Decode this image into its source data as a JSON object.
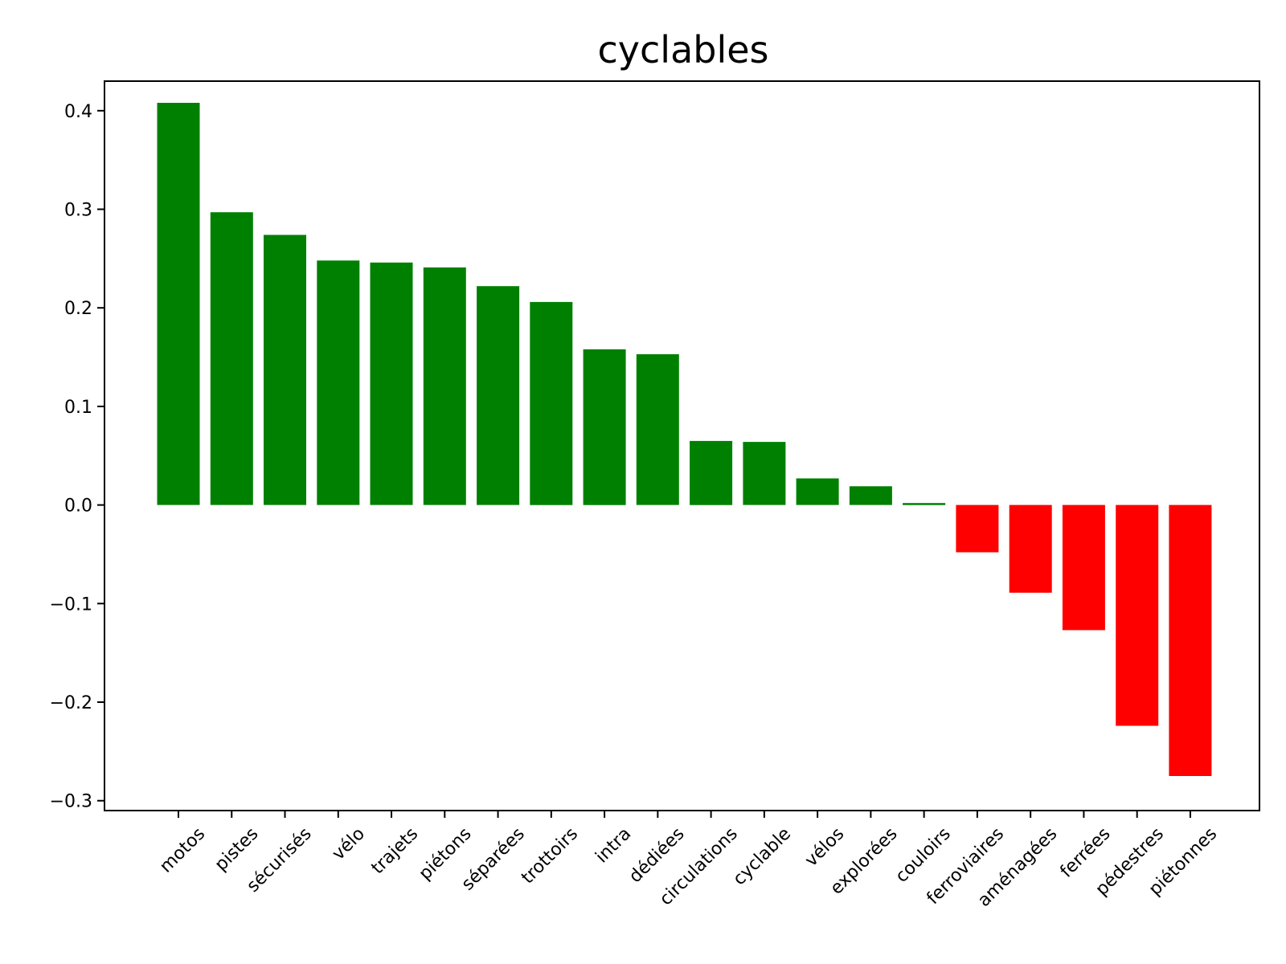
{
  "chart_data": {
    "type": "bar",
    "title": "cyclables",
    "xlabel": "",
    "ylabel": "",
    "categories": [
      "motos",
      "pistes",
      "sécurisés",
      "vélo",
      "trajets",
      "piétons",
      "séparées",
      "trottoirs",
      "intra",
      "dédiées",
      "circulations",
      "cyclable",
      "vélos",
      "explorées",
      "couloirs",
      "ferroviaires",
      "aménagées",
      "ferrées",
      "pédestres",
      "piétonnes"
    ],
    "values": [
      0.408,
      0.297,
      0.274,
      0.248,
      0.246,
      0.241,
      0.222,
      0.206,
      0.158,
      0.153,
      0.065,
      0.064,
      0.027,
      0.019,
      0.002,
      -0.048,
      -0.089,
      -0.127,
      -0.224,
      -0.275
    ],
    "ylim": [
      -0.31,
      0.43
    ],
    "yticks": [
      -0.3,
      -0.2,
      -0.1,
      0.0,
      0.1,
      0.2,
      0.3,
      0.4
    ],
    "ytick_labels": [
      "−0.3",
      "−0.2",
      "−0.1",
      "0.0",
      "0.1",
      "0.2",
      "0.3",
      "0.4"
    ],
    "colors": {
      "positive": "#008000",
      "negative": "#ff0000"
    },
    "grid": false,
    "legend": "none"
  }
}
